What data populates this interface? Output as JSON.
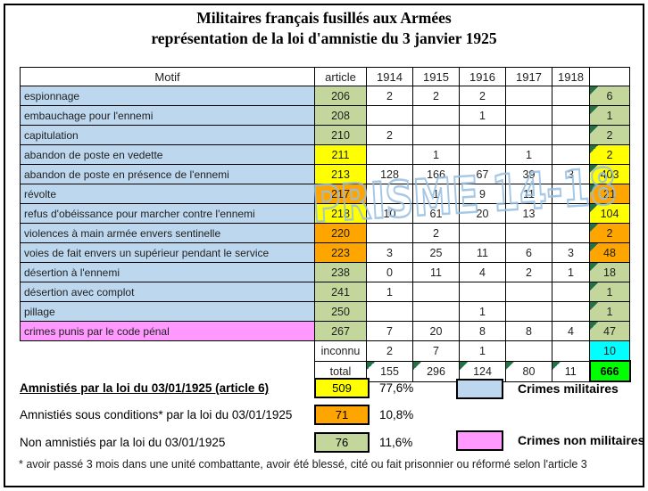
{
  "title": {
    "line1": "Militaires français fusillés aux Armées",
    "line2": "représentation de la loi d'amnistie du 3 janvier 1925"
  },
  "watermark": "PRISME 14-18",
  "colors": {
    "blue": "#bdd7ee",
    "green": "#c3d69b",
    "yellow": "#ffff00",
    "orange": "#ffa500",
    "pink": "#ff99ff",
    "cyan": "#00ffff",
    "bright_green": "#00ff00",
    "triangle": "#217346",
    "watermark_stroke": "#96bee3"
  },
  "chart_data": {
    "type": "table",
    "title": "Militaires français fusillés aux Armées — représentation de la loi d'amnistie du 3 janvier 1925",
    "columns": [
      "Motif",
      "article",
      "1914",
      "1915",
      "1916",
      "1917",
      "1918",
      "total"
    ],
    "rows": [
      {
        "motif": "espionnage",
        "article": "206",
        "crime_color": "blue",
        "amnesty_color": "green",
        "values": [
          "2",
          "2",
          "2",
          "",
          ""
        ],
        "total": "6"
      },
      {
        "motif": "embauchage pour l'ennemi",
        "article": "208",
        "crime_color": "blue",
        "amnesty_color": "green",
        "values": [
          "",
          "",
          "1",
          "",
          ""
        ],
        "total": "1"
      },
      {
        "motif": "capitulation",
        "article": "210",
        "crime_color": "blue",
        "amnesty_color": "green",
        "values": [
          "2",
          "",
          "",
          "",
          ""
        ],
        "total": "2"
      },
      {
        "motif": "abandon de poste en vedette",
        "article": "211",
        "crime_color": "blue",
        "amnesty_color": "yellow",
        "values": [
          "",
          "1",
          "",
          "1",
          ""
        ],
        "total": "2"
      },
      {
        "motif": "abandon de poste en présence de l'ennemi",
        "article": "213",
        "crime_color": "blue",
        "amnesty_color": "yellow",
        "values": [
          "128",
          "166",
          "67",
          "39",
          "3"
        ],
        "total": "403"
      },
      {
        "motif": "révolte",
        "article": "217",
        "crime_color": "blue",
        "amnesty_color": "orange",
        "values": [
          "",
          "1",
          "9",
          "11",
          ""
        ],
        "total": "21"
      },
      {
        "motif": "refus d'obéissance pour marcher contre l'ennemi",
        "article": "218",
        "crime_color": "blue",
        "amnesty_color": "yellow",
        "values": [
          "10",
          "61",
          "20",
          "13",
          ""
        ],
        "total": "104"
      },
      {
        "motif": "violences à main armée  envers sentinelle",
        "article": "220",
        "crime_color": "blue",
        "amnesty_color": "orange",
        "values": [
          "",
          "2",
          "",
          "",
          ""
        ],
        "total": "2"
      },
      {
        "motif": "voies de fait envers un supérieur pendant le service",
        "article": "223",
        "crime_color": "blue",
        "amnesty_color": "orange",
        "values": [
          "3",
          "25",
          "11",
          "6",
          "3"
        ],
        "total": "48"
      },
      {
        "motif": "désertion à l'ennemi",
        "article": "238",
        "crime_color": "blue",
        "amnesty_color": "green",
        "values": [
          "0",
          "11",
          "4",
          "2",
          "1"
        ],
        "total": "18"
      },
      {
        "motif": "désertion avec complot",
        "article": "241",
        "crime_color": "blue",
        "amnesty_color": "green",
        "values": [
          "1",
          "",
          "",
          "",
          ""
        ],
        "total": "1"
      },
      {
        "motif": "pillage",
        "article": "250",
        "crime_color": "blue",
        "amnesty_color": "green",
        "values": [
          "",
          "",
          "1",
          "",
          ""
        ],
        "total": "1"
      },
      {
        "motif": "crimes punis par le code pénal",
        "article": "267",
        "crime_color": "pink",
        "amnesty_color": "green",
        "values": [
          "7",
          "20",
          "8",
          "8",
          "4"
        ],
        "total": "47"
      }
    ],
    "extra_rows": [
      {
        "label": "inconnu",
        "values": [
          "2",
          "7",
          "1",
          "",
          ""
        ],
        "total": "10",
        "total_color": "cyan",
        "triangles": false
      },
      {
        "label": "total",
        "values": [
          "155",
          "296",
          "124",
          "80",
          "11"
        ],
        "total": "666",
        "total_color": "bright_green",
        "triangles": true
      }
    ],
    "summary": [
      {
        "label": "Amnistiés par la loi du 03/01/1925 (article 6)",
        "value": "509",
        "pct": "77,6%",
        "color_key": "yellow",
        "emphasis": true
      },
      {
        "label": "Amnistiés sous conditions* par la loi du 03/01/1925",
        "value": "71",
        "pct": "10,8%",
        "color_key": "orange",
        "emphasis": false
      },
      {
        "label": "Non amnistiés par la loi du 03/01/1925",
        "value": "76",
        "pct": "11,6%",
        "color_key": "green",
        "emphasis": false
      }
    ],
    "legend": [
      {
        "label": "Crimes militaires",
        "color_key": "blue"
      },
      {
        "label": "Crimes non militaires",
        "color_key": "pink"
      }
    ],
    "footnote": "* avoir passé 3 mois dans une unité combattante, avoir été blessé, cité ou fait prisonnier ou réformé selon l'article 3"
  }
}
